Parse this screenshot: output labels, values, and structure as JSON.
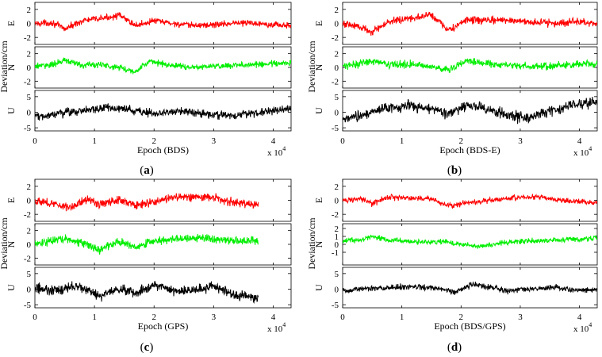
{
  "figure": {
    "shared_ylabel": "Deviation/cm",
    "multiplier_text": "x 10",
    "multiplier_exp": "4"
  },
  "chart_data": [
    {
      "type": "line",
      "panel_label": "(a)",
      "xlabel": "Epoch (BDS)",
      "xlim": [
        0,
        43000
      ],
      "xticks": [
        0,
        1,
        2,
        3,
        4
      ],
      "x_multiplier": 10000,
      "series": [
        {
          "name": "E",
          "color": "#ff0000",
          "ylim": [
            -3,
            3
          ],
          "yticks": [
            -2,
            0,
            2
          ],
          "data_x_end": 43000,
          "noise_amp": 0.35,
          "trend_x": [
            0,
            3000,
            5000,
            8000,
            12000,
            14000,
            17000,
            20000,
            23000,
            26000,
            30000,
            34000,
            38000,
            41000,
            43000
          ],
          "trend_y": [
            0,
            0.1,
            -0.8,
            0.4,
            0.8,
            1.2,
            -0.3,
            0.4,
            0.0,
            -0.3,
            -0.2,
            0.1,
            0.0,
            -0.2,
            -0.4
          ]
        },
        {
          "name": "N",
          "color": "#00ee00",
          "ylim": [
            -3,
            3
          ],
          "yticks": [
            -2,
            0,
            2
          ],
          "data_x_end": 43000,
          "noise_amp": 0.35,
          "trend_x": [
            0,
            3000,
            5000,
            8000,
            11000,
            14000,
            17000,
            19000,
            22000,
            26000,
            30000,
            34000,
            38000,
            43000
          ],
          "trend_y": [
            0.2,
            0.4,
            1.0,
            0.3,
            0.4,
            0.0,
            -0.6,
            0.9,
            0.4,
            0.0,
            0.2,
            0.3,
            0.5,
            0.6
          ]
        },
        {
          "name": "U",
          "color": "#000000",
          "ylim": [
            -6,
            7
          ],
          "yticks": [
            -5,
            0,
            5
          ],
          "data_x_end": 43000,
          "noise_amp": 1.0,
          "trend_x": [
            0,
            4000,
            8000,
            12000,
            16000,
            20000,
            24000,
            28000,
            32000,
            36000,
            40000,
            43000
          ],
          "trend_y": [
            -1.5,
            -0.5,
            0.5,
            1.5,
            0.8,
            -0.5,
            0.5,
            -0.5,
            -1.0,
            -0.3,
            0.5,
            1.0
          ]
        }
      ]
    },
    {
      "type": "line",
      "panel_label": "(b)",
      "xlabel": "Epoch (BDS-E)",
      "xlim": [
        0,
        43000
      ],
      "xticks": [
        0,
        1,
        2,
        3,
        4
      ],
      "x_multiplier": 10000,
      "series": [
        {
          "name": "E",
          "color": "#ff0000",
          "ylim": [
            -3,
            3
          ],
          "yticks": [
            -2,
            0,
            2
          ],
          "data_x_end": 43000,
          "noise_amp": 0.4,
          "trend_x": [
            0,
            3000,
            5000,
            8000,
            12000,
            15000,
            18000,
            21000,
            24000,
            28000,
            32000,
            36000,
            40000,
            43000
          ],
          "trend_y": [
            0,
            -0.5,
            -1.2,
            0.3,
            0.8,
            1.2,
            -1.0,
            0.5,
            0.4,
            0.5,
            0.2,
            0.0,
            0.3,
            -0.3
          ]
        },
        {
          "name": "N",
          "color": "#00ee00",
          "ylim": [
            -3,
            3
          ],
          "yticks": [
            -2,
            0,
            2
          ],
          "data_x_end": 43000,
          "noise_amp": 0.4,
          "trend_x": [
            0,
            3000,
            5000,
            8000,
            12000,
            15000,
            18000,
            21000,
            24000,
            28000,
            32000,
            36000,
            40000,
            43000
          ],
          "trend_y": [
            0.3,
            0.5,
            1.0,
            0.4,
            0.5,
            0.0,
            -0.3,
            1.0,
            0.6,
            0.3,
            0.1,
            0.2,
            0.5,
            0.4
          ]
        },
        {
          "name": "U",
          "color": "#000000",
          "ylim": [
            -6,
            7
          ],
          "yticks": [
            -5,
            0,
            5
          ],
          "data_x_end": 43000,
          "noise_amp": 1.3,
          "trend_x": [
            0,
            3000,
            7000,
            11000,
            15000,
            18000,
            21000,
            24000,
            27000,
            31000,
            35000,
            39000,
            43000
          ],
          "trend_y": [
            -2.5,
            -1.0,
            1.0,
            2.0,
            1.0,
            -0.5,
            2.5,
            1.0,
            -0.5,
            -2.0,
            0.5,
            2.5,
            3.0
          ]
        }
      ]
    },
    {
      "type": "line",
      "panel_label": "(c)",
      "xlabel": "Epoch (GPS)",
      "xlim": [
        0,
        43000
      ],
      "xticks": [
        0,
        1,
        2,
        3,
        4
      ],
      "x_multiplier": 10000,
      "series": [
        {
          "name": "E",
          "color": "#ff0000",
          "ylim": [
            -3,
            3
          ],
          "yticks": [
            -2,
            0,
            2
          ],
          "data_x_end": 37500,
          "noise_amp": 0.45,
          "trend_x": [
            0,
            3000,
            6000,
            9000,
            11000,
            14000,
            17000,
            20000,
            23000,
            27000,
            30000,
            33000,
            37500
          ],
          "trend_y": [
            0,
            -0.5,
            -1.0,
            0.3,
            -0.7,
            0.2,
            -0.8,
            -0.2,
            0.4,
            0.5,
            0.4,
            -0.3,
            -0.6
          ]
        },
        {
          "name": "N",
          "color": "#00ee00",
          "ylim": [
            -3,
            3
          ],
          "yticks": [
            -2,
            0,
            2
          ],
          "data_x_end": 37500,
          "noise_amp": 0.45,
          "trend_x": [
            0,
            3000,
            5000,
            8000,
            11000,
            14000,
            17000,
            20000,
            24000,
            28000,
            32000,
            37500
          ],
          "trend_y": [
            0,
            0.5,
            0.8,
            0.2,
            -0.8,
            0.4,
            -0.4,
            0.5,
            0.8,
            1.0,
            0.6,
            0.5
          ]
        },
        {
          "name": "U",
          "color": "#000000",
          "ylim": [
            -6,
            7
          ],
          "yticks": [
            -5,
            0,
            5
          ],
          "data_x_end": 37500,
          "noise_amp": 1.2,
          "trend_x": [
            0,
            3000,
            7000,
            11000,
            14000,
            17000,
            20000,
            23000,
            26000,
            30000,
            34000,
            37500
          ],
          "trend_y": [
            0.5,
            -0.5,
            1.0,
            -2.0,
            0.0,
            -1.5,
            1.5,
            -0.5,
            -0.5,
            1.0,
            -2.0,
            -2.5
          ]
        }
      ]
    },
    {
      "type": "line",
      "panel_label": "(d)",
      "xlabel": "Epoch (BDS/GPS)",
      "xlim": [
        0,
        43000
      ],
      "xticks": [
        0,
        1,
        2,
        3,
        4
      ],
      "x_multiplier": 10000,
      "series": [
        {
          "name": "E",
          "color": "#ff0000",
          "ylim": [
            -3,
            3
          ],
          "yticks": [
            -2,
            0,
            2
          ],
          "data_x_end": 43000,
          "noise_amp": 0.3,
          "trend_x": [
            0,
            3000,
            5000,
            8000,
            12000,
            15000,
            18000,
            21000,
            25000,
            29000,
            33000,
            37000,
            40000,
            43000
          ],
          "trend_y": [
            0,
            0.2,
            -0.5,
            0.5,
            0.3,
            0.2,
            -0.8,
            -0.3,
            0.0,
            0.4,
            0.5,
            0.0,
            -0.2,
            -0.4
          ]
        },
        {
          "name": "N",
          "color": "#00ee00",
          "ylim": [
            -2.6,
            2.6
          ],
          "yticks": [
            -1,
            0,
            1,
            2
          ],
          "data_x_end": 43000,
          "noise_amp": 0.25,
          "trend_x": [
            0,
            3000,
            5000,
            8000,
            11000,
            14000,
            17000,
            20000,
            23000,
            27000,
            31000,
            35000,
            39000,
            43000
          ],
          "trend_y": [
            0.4,
            0.6,
            1.0,
            0.5,
            0.4,
            0.2,
            0.4,
            0.0,
            -0.3,
            0.2,
            0.4,
            0.5,
            0.6,
            0.8
          ]
        },
        {
          "name": "U",
          "color": "#000000",
          "ylim": [
            -6,
            7
          ],
          "yticks": [
            -5,
            0,
            5
          ],
          "data_x_end": 43000,
          "noise_amp": 0.7,
          "trend_x": [
            0,
            4000,
            8000,
            12000,
            16000,
            19000,
            22000,
            25000,
            28000,
            32000,
            36000,
            40000,
            43000
          ],
          "trend_y": [
            -0.5,
            0.3,
            0.5,
            0.8,
            0.3,
            -1.0,
            1.5,
            0.5,
            -0.5,
            0.0,
            0.5,
            -0.5,
            0.0
          ]
        }
      ]
    }
  ]
}
